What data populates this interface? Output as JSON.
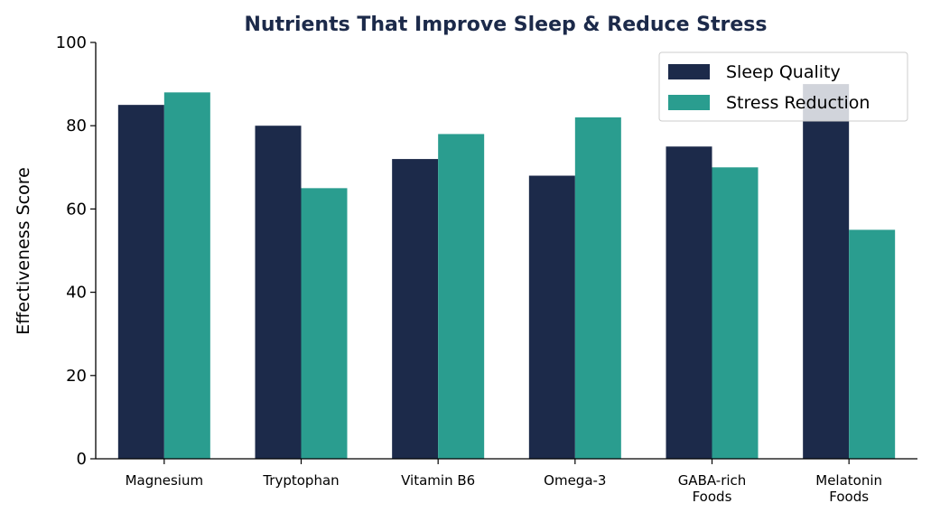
{
  "chart_data": {
    "type": "bar",
    "title": "Nutrients That Improve Sleep & Reduce Stress",
    "xlabel": "",
    "ylabel": "Effectiveness Score",
    "categories": [
      [
        "Magnesium"
      ],
      [
        "Tryptophan"
      ],
      [
        "Vitamin B6"
      ],
      [
        "Omega-3"
      ],
      [
        "GABA-rich",
        "Foods"
      ],
      [
        "Melatonin",
        "Foods"
      ]
    ],
    "series": [
      {
        "name": "Sleep Quality",
        "color": "#1c2a4a",
        "values": [
          85,
          80,
          72,
          68,
          75,
          90
        ]
      },
      {
        "name": "Stress Reduction",
        "color": "#2a9d8f",
        "values": [
          88,
          65,
          78,
          82,
          70,
          55
        ]
      }
    ],
    "ylim": [
      0,
      100
    ],
    "yticks": [
      0,
      20,
      40,
      60,
      80,
      100
    ],
    "grid": false,
    "legend_position": "top-right"
  }
}
